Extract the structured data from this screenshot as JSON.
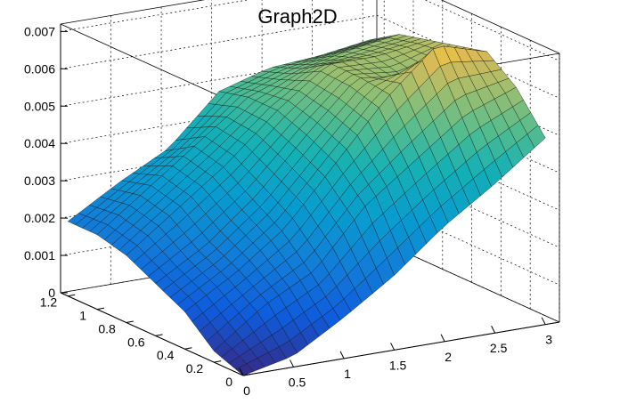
{
  "chart_data": {
    "type": "surface",
    "title": "Graph2D",
    "xlabel": "",
    "ylabel": "",
    "zlabel": "",
    "xlim": [
      0,
      3.14
    ],
    "ylim": [
      0,
      1.25
    ],
    "zlim": [
      0,
      0.0072
    ],
    "x_ticks": [
      "0",
      "0.5",
      "1",
      "1.5",
      "2",
      "2.5",
      "3"
    ],
    "y_ticks": [
      "0",
      "0.2",
      "0.4",
      "0.6",
      "0.8",
      "1",
      "1.2"
    ],
    "z_ticks": [
      "0",
      "0.001",
      "0.002",
      "0.003",
      "0.004",
      "0.005",
      "0.006",
      "0.007"
    ],
    "colormap": "parula",
    "grid": true,
    "approx_surface": {
      "x_samples": [
        0,
        0.5,
        1.0,
        1.5,
        2.0,
        2.5,
        3.0
      ],
      "y_samples": [
        0,
        0.2,
        0.4,
        0.6,
        0.8,
        1.0,
        1.2
      ],
      "z_values": [
        [
          0.0,
          0.0003,
          0.0011,
          0.002,
          0.0031,
          0.004,
          0.005
        ],
        [
          0.0003,
          0.0013,
          0.002,
          0.0035,
          0.0045,
          0.0055,
          0.006
        ],
        [
          0.001,
          0.0018,
          0.0028,
          0.0043,
          0.0058,
          0.007,
          0.0066
        ],
        [
          0.0014,
          0.0022,
          0.0033,
          0.0047,
          0.006,
          0.0058,
          0.0064
        ],
        [
          0.0018,
          0.0028,
          0.0038,
          0.005,
          0.006,
          0.006,
          0.0062
        ],
        [
          0.002,
          0.003,
          0.004,
          0.005,
          0.0055,
          0.0058,
          0.006
        ],
        [
          0.002,
          0.0028,
          0.0035,
          0.0048,
          0.0052,
          0.0053,
          0.0055
        ]
      ]
    }
  }
}
